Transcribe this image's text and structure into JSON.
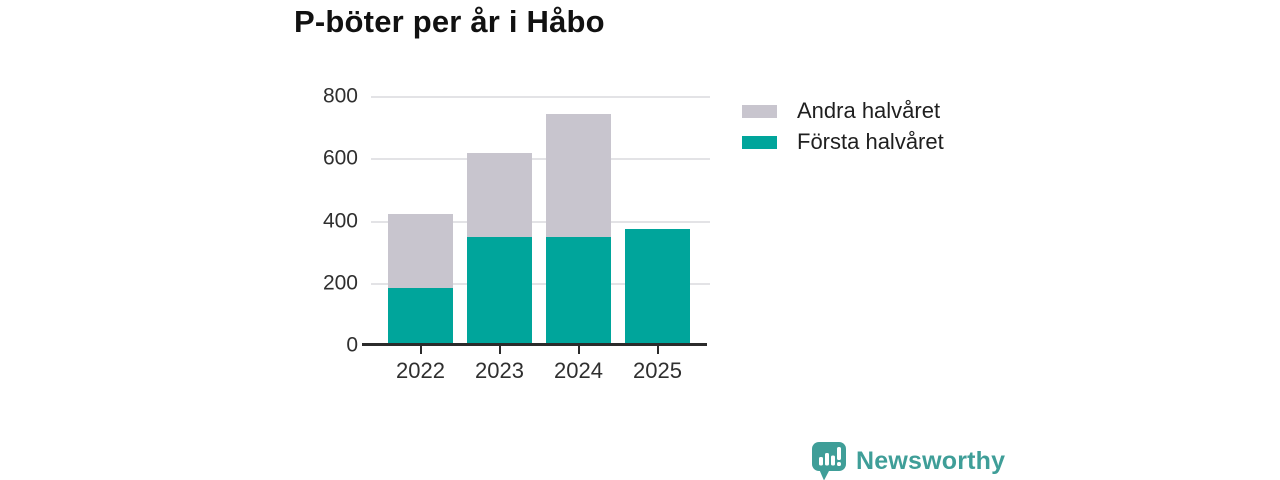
{
  "title": "P-böter per år i Håbo",
  "branding": {
    "wordmark": "Newsworthy"
  },
  "colors": {
    "first_half": "#00a59b",
    "second_half": "#c8c5ce",
    "brand": "#3f9e98",
    "grid": "#e3e3e6",
    "axis": "#2b2b2b",
    "tick_text": "#2f2f2f",
    "legend_text": "#1f1f1f",
    "title_text": "#111111",
    "background": "#ffffff"
  },
  "chart_data": {
    "type": "bar",
    "stacked": true,
    "title": "P-böter per år i Håbo",
    "categories": [
      "2022",
      "2023",
      "2024",
      "2025"
    ],
    "series": [
      {
        "name": "Första halvåret",
        "color_key": "first_half",
        "values": [
          185,
          350,
          350,
          375
        ]
      },
      {
        "name": "Andra halvåret",
        "color_key": "second_half",
        "values": [
          240,
          270,
          395,
          0
        ]
      }
    ],
    "totals": [
      425,
      620,
      745,
      375
    ],
    "xlabel": "",
    "ylabel": "",
    "ylim": [
      0,
      800
    ],
    "yticks": [
      0,
      200,
      400,
      600,
      800
    ],
    "grid": true,
    "legend_position": "top-right"
  }
}
